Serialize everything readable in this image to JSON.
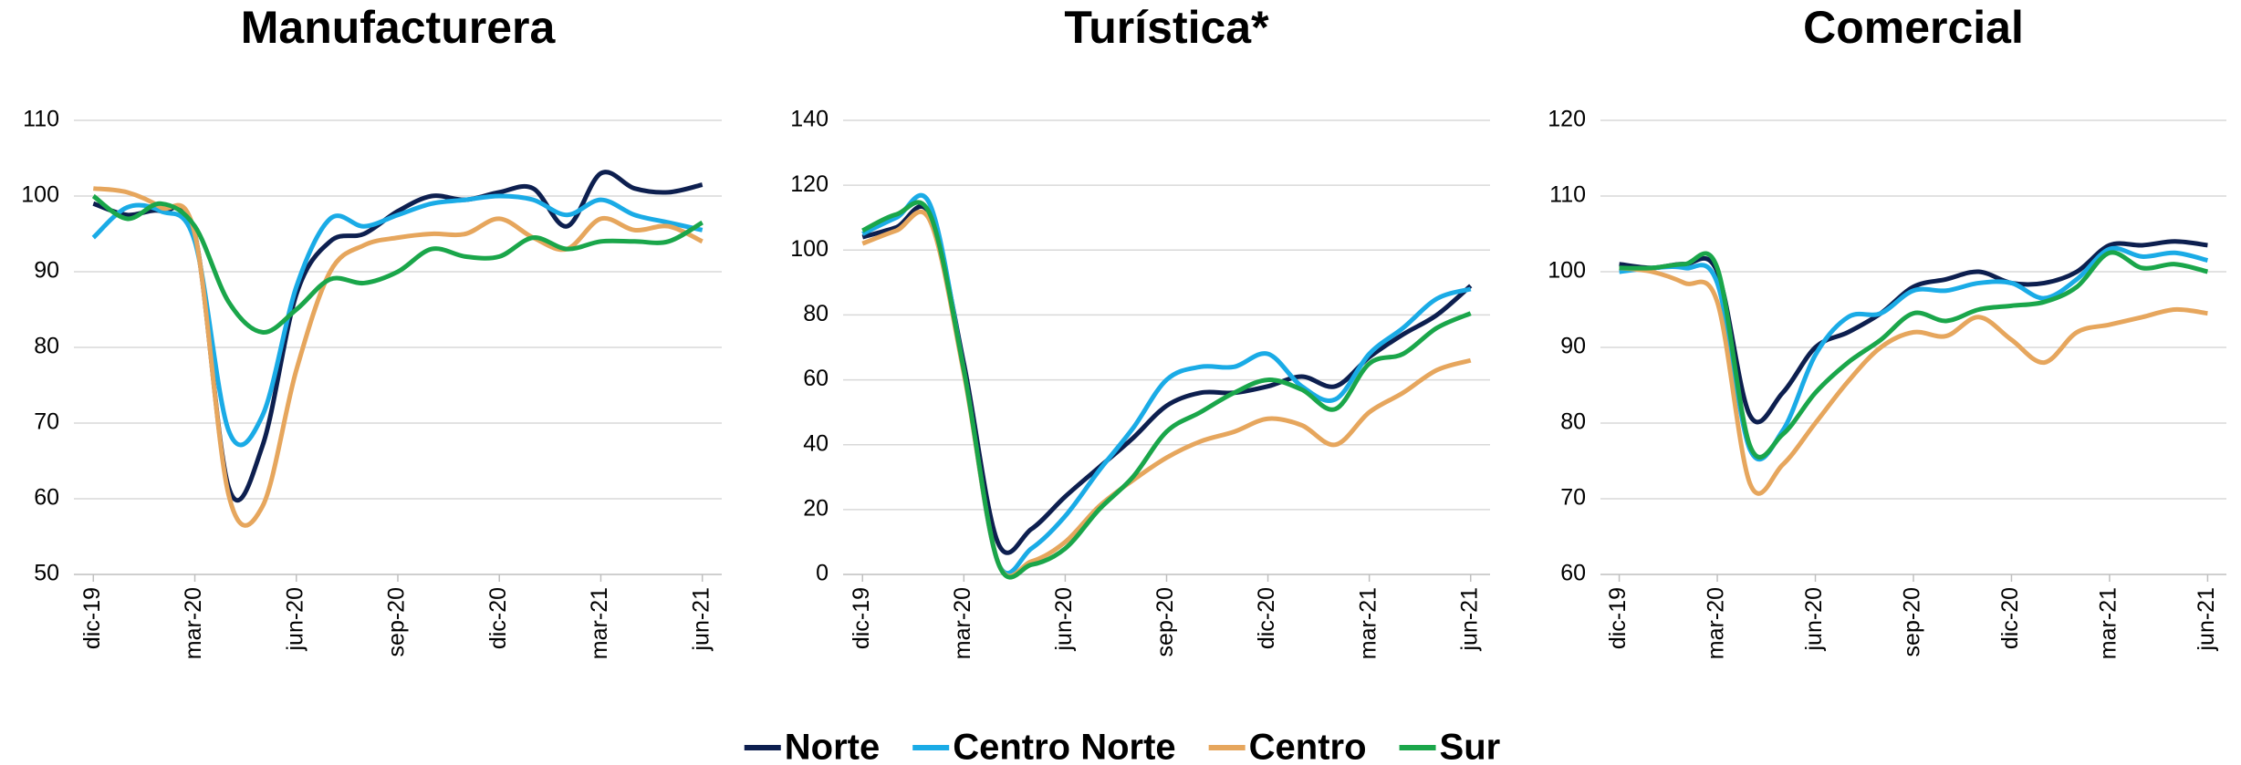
{
  "chart_data": [
    {
      "type": "line",
      "title": "Manufacturera",
      "categories": [
        "dic-19",
        null,
        null,
        "mar-20",
        null,
        null,
        "jun-20",
        null,
        null,
        "sep-20",
        null,
        null,
        "dic-20",
        null,
        null,
        "mar-21",
        null,
        null,
        "jun-21"
      ],
      "ylim": [
        50,
        110
      ],
      "yticks": [
        50,
        60,
        70,
        80,
        90,
        100,
        110
      ],
      "grid": true,
      "series": [
        {
          "name": "Norte",
          "color": "#0d1f4f",
          "values": [
            99,
            97.5,
            98,
            95,
            61.5,
            67,
            87,
            94,
            95,
            98,
            100,
            99.5,
            100.5,
            101,
            96,
            103,
            101,
            100.5,
            101.5
          ]
        },
        {
          "name": "Centro Norte",
          "color": "#1aabe6",
          "values": [
            94.5,
            98.5,
            98,
            94,
            69,
            71,
            88,
            97,
            96,
            97.5,
            99,
            99.5,
            100,
            99.5,
            97.5,
            99.5,
            97.5,
            96.5,
            95.5
          ]
        },
        {
          "name": "Centro",
          "color": "#e6a65d",
          "values": [
            101,
            100.5,
            98.5,
            95,
            60.5,
            59,
            77,
            90,
            93.5,
            94.5,
            95,
            95,
            97,
            94.5,
            93,
            97,
            95.5,
            96,
            94
          ]
        },
        {
          "name": "Sur",
          "color": "#1aa64a",
          "values": [
            100,
            97,
            99,
            96,
            86,
            82,
            85,
            89,
            88.5,
            90,
            93,
            92,
            92,
            94.5,
            93,
            94,
            94,
            94,
            96.5
          ]
        }
      ]
    },
    {
      "type": "line",
      "title": "Turística*",
      "categories": [
        "dic-19",
        null,
        null,
        "mar-20",
        null,
        null,
        "jun-20",
        null,
        null,
        "sep-20",
        null,
        null,
        "dic-20",
        null,
        null,
        "mar-21",
        null,
        null,
        "jun-21"
      ],
      "ylim": [
        0,
        140
      ],
      "yticks": [
        0,
        20,
        40,
        60,
        80,
        100,
        120,
        140
      ],
      "grid": true,
      "series": [
        {
          "name": "Norte",
          "color": "#0d1f4f",
          "values": [
            104,
            107,
            111,
            65,
            10,
            14,
            24,
            33,
            42,
            52,
            56,
            56,
            58,
            61,
            58,
            67,
            74,
            80,
            89
          ]
        },
        {
          "name": "Centro Norte",
          "color": "#1aabe6",
          "values": [
            105,
            110,
            114,
            63,
            4,
            8,
            18,
            32,
            45,
            60,
            64,
            64,
            68,
            58,
            54,
            68,
            76,
            85,
            88
          ]
        },
        {
          "name": "Centro",
          "color": "#e6a65d",
          "values": [
            102,
            106,
            109,
            62,
            4,
            4,
            10,
            21,
            29,
            36,
            41,
            44,
            48,
            46,
            40,
            50,
            56,
            63,
            66
          ]
        },
        {
          "name": "Sur",
          "color": "#1aa64a",
          "values": [
            106,
            111,
            111,
            63,
            4,
            3,
            8,
            20,
            30,
            44,
            50,
            56,
            60,
            57,
            51,
            65,
            68,
            76,
            80.5
          ]
        }
      ]
    },
    {
      "type": "line",
      "title": "Comercial",
      "categories": [
        "dic-19",
        null,
        null,
        "mar-20",
        null,
        null,
        "jun-20",
        null,
        null,
        "sep-20",
        null,
        null,
        "dic-20",
        null,
        null,
        "mar-21",
        null,
        null,
        "jun-21"
      ],
      "ylim": [
        60,
        120
      ],
      "yticks": [
        60,
        70,
        80,
        90,
        100,
        110,
        120
      ],
      "grid": true,
      "series": [
        {
          "name": "Norte",
          "color": "#0d1f4f",
          "values": [
            101,
            100.5,
            101,
            100,
            81,
            84,
            90,
            92,
            94.5,
            98,
            99,
            100,
            98.5,
            98.5,
            100,
            103.5,
            103.5,
            104,
            103.5
          ]
        },
        {
          "name": "Centro Norte",
          "color": "#1aabe6",
          "values": [
            100,
            100.5,
            100.5,
            98.5,
            76.5,
            79,
            89,
            94,
            94.5,
            97.5,
            97.5,
            98.5,
            98.5,
            96.5,
            99,
            103,
            102,
            102.5,
            101.5
          ]
        },
        {
          "name": "Centro",
          "color": "#e6a65d",
          "values": [
            100.5,
            100,
            98.5,
            96,
            72,
            74.5,
            80,
            85.5,
            90,
            92,
            91.5,
            94,
            91,
            88,
            92,
            93,
            94,
            95,
            94.5
          ]
        },
        {
          "name": "Sur",
          "color": "#1aa64a",
          "values": [
            100.5,
            100.5,
            101,
            100.5,
            77,
            78.5,
            84,
            88,
            91,
            94.5,
            93.5,
            95,
            95.5,
            96,
            98,
            102.5,
            100.5,
            101,
            100
          ]
        }
      ]
    }
  ]
}
